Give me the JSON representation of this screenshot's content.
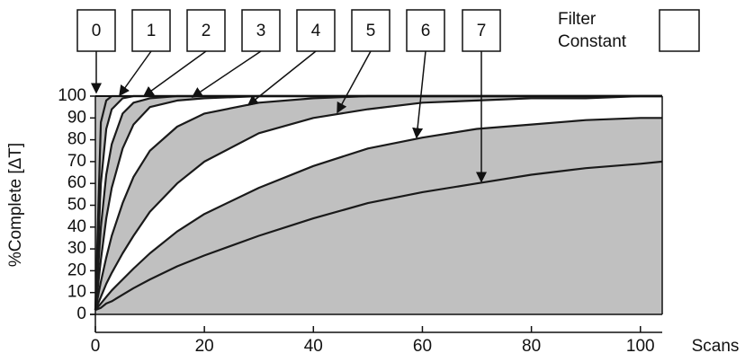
{
  "chart_data": {
    "type": "line",
    "x_label": "Scans",
    "y_label": "%Complete [ΔT]",
    "legend_title": [
      "Filter",
      "Constant"
    ],
    "xlim": [
      0,
      104
    ],
    "ylim": [
      0,
      100
    ],
    "xticks": [
      0,
      20,
      40,
      60,
      80,
      100
    ],
    "yticks": [
      0,
      10,
      20,
      30,
      40,
      50,
      60,
      70,
      80,
      90,
      100
    ],
    "line_color": "#1a1a1a",
    "background": "#c0c0c0",
    "x": [
      0,
      1,
      2,
      3,
      5,
      7,
      10,
      15,
      20,
      30,
      40,
      50,
      60,
      70,
      80,
      90,
      100,
      104
    ],
    "series": [
      {
        "name": "0",
        "color": "#c0c0c0",
        "values": [
          2,
          88,
          98,
          100,
          100,
          100,
          100,
          100,
          100,
          100,
          100,
          100,
          100,
          100,
          100,
          100,
          100,
          100
        ]
      },
      {
        "name": "1",
        "color": "#ffffff",
        "values": [
          2,
          60,
          85,
          94,
          99,
          100,
          100,
          100,
          100,
          100,
          100,
          100,
          100,
          100,
          100,
          100,
          100,
          100
        ]
      },
      {
        "name": "2",
        "color": "#c0c0c0",
        "values": [
          2,
          40,
          64,
          78,
          92,
          97,
          99,
          100,
          100,
          100,
          100,
          100,
          100,
          100,
          100,
          100,
          100,
          100
        ]
      },
      {
        "name": "3",
        "color": "#ffffff",
        "values": [
          2,
          25,
          44,
          58,
          76,
          87,
          95,
          98,
          99,
          100,
          100,
          100,
          100,
          100,
          100,
          100,
          100,
          100
        ]
      },
      {
        "name": "4",
        "color": "#c0c0c0",
        "values": [
          2,
          15,
          26,
          36,
          51,
          63,
          75,
          86,
          92,
          97,
          99,
          100,
          100,
          100,
          100,
          100,
          100,
          100
        ]
      },
      {
        "name": "5",
        "color": "#ffffff",
        "values": [
          2,
          8,
          14,
          19,
          28,
          36,
          47,
          60,
          70,
          83,
          90,
          94,
          97,
          98,
          99,
          99,
          100,
          100
        ]
      },
      {
        "name": "6",
        "color": "#c0c0c0",
        "values": [
          2,
          5,
          8,
          11,
          16,
          21,
          28,
          38,
          46,
          58,
          68,
          76,
          81,
          85,
          87,
          89,
          90,
          90
        ]
      },
      {
        "name": "7",
        "color": "#c0c0c0",
        "values": [
          2,
          3,
          5,
          6,
          9,
          12,
          16,
          22,
          27,
          36,
          44,
          51,
          56,
          60,
          64,
          67,
          69,
          70
        ]
      }
    ]
  }
}
